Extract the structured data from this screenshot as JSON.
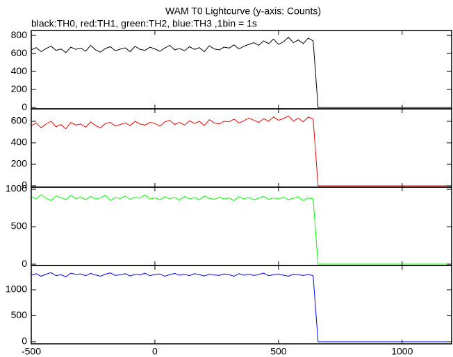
{
  "chart_data": {
    "type": "line",
    "title": "WAM T0 Lightcurve (y-axis: Counts)",
    "subtitle": "black:TH0, red:TH1, green:TH2, blue:TH3 ,1bin = 1s",
    "x": [
      -500,
      -480,
      -460,
      -440,
      -420,
      -400,
      -380,
      -360,
      -340,
      -320,
      -300,
      -280,
      -260,
      -240,
      -220,
      -200,
      -180,
      -160,
      -140,
      -120,
      -100,
      -80,
      -60,
      -40,
      -20,
      0,
      20,
      40,
      60,
      80,
      100,
      120,
      140,
      160,
      180,
      200,
      220,
      240,
      260,
      280,
      300,
      320,
      340,
      360,
      380,
      400,
      420,
      440,
      460,
      480,
      500,
      520,
      540,
      560,
      580,
      600,
      620,
      640,
      660,
      680,
      700,
      720,
      740,
      760,
      780,
      800,
      820,
      840,
      860,
      880,
      900,
      920,
      940,
      960,
      980,
      1000,
      1020,
      1040,
      1060,
      1080,
      1100,
      1120,
      1140,
      1160,
      1180,
      1200
    ],
    "xlim": [
      -500,
      1200
    ],
    "xticks": [
      -500,
      0,
      500,
      1000
    ],
    "panels": [
      {
        "ylim": [
          -15,
          855
        ],
        "yticks": [
          0,
          200,
          400,
          600,
          800
        ],
        "series": [
          {
            "color": "#000000",
            "values": [
              640,
              665,
              620,
              655,
              680,
              635,
              650,
              610,
              670,
              645,
              660,
              625,
              690,
              640,
              615,
              655,
              675,
              630,
              648,
              662,
              620,
              680,
              645,
              635,
              670,
              650,
              625,
              660,
              690,
              640,
              655,
              630,
              675,
              645,
              665,
              620,
              685,
              650,
              640,
              670,
              660,
              695,
              650,
              680,
              700,
              720,
              690,
              740,
              710,
              760,
              700,
              730,
              780,
              720,
              750,
              710,
              770,
              740,
              0,
              0,
              0,
              0,
              0,
              0,
              0,
              0,
              0,
              0,
              0,
              0,
              0,
              0,
              0,
              0,
              0,
              0,
              0,
              0,
              0,
              0,
              0,
              0,
              0,
              0,
              0,
              0
            ]
          }
        ]
      },
      {
        "ylim": [
          -13,
          716
        ],
        "yticks": [
          0,
          200,
          400,
          600
        ],
        "series": [
          {
            "color": "#ff0000",
            "values": [
              560,
              585,
              540,
              575,
              600,
              550,
              570,
              530,
              590,
              565,
              575,
              545,
              595,
              560,
              540,
              580,
              590,
              555,
              570,
              585,
              560,
              600,
              575,
              565,
              590,
              580,
              555,
              595,
              610,
              570,
              590,
              565,
              605,
              580,
              600,
              560,
              615,
              585,
              575,
              600,
              595,
              620,
              585,
              605,
              630,
              610,
              590,
              625,
              600,
              640,
              610,
              625,
              650,
              600,
              630,
              595,
              640,
              620,
              0,
              0,
              0,
              0,
              0,
              0,
              0,
              0,
              0,
              0,
              0,
              0,
              0,
              0,
              0,
              0,
              0,
              0,
              0,
              0,
              0,
              0,
              0,
              0,
              0,
              0,
              0,
              0
            ]
          }
        ]
      },
      {
        "ylim": [
          -18,
          1028
        ],
        "yticks": [
          0,
          500,
          1000
        ],
        "series": [
          {
            "color": "#00ff00",
            "values": [
              900,
              870,
              930,
              880,
              850,
              910,
              890,
              860,
              920,
              875,
              895,
              860,
              905,
              870,
              885,
              920,
              850,
              890,
              875,
              910,
              865,
              895,
              880,
              925,
              870,
              885,
              860,
              900,
              875,
              890,
              855,
              905,
              870,
              890,
              860,
              910,
              880,
              865,
              895,
              870,
              885,
              850,
              900,
              870,
              890,
              860,
              880,
              905,
              865,
              885,
              870,
              895,
              860,
              880,
              900,
              850,
              885,
              870,
              0,
              0,
              0,
              0,
              0,
              0,
              0,
              0,
              0,
              0,
              0,
              0,
              0,
              0,
              0,
              0,
              0,
              0,
              0,
              0,
              0,
              0,
              0,
              0,
              0,
              0,
              0,
              0
            ]
          }
        ]
      },
      {
        "ylim": [
          -40,
          1467
        ],
        "yticks": [
          0,
          500,
          1000
        ],
        "series": [
          {
            "color": "#0000ff",
            "values": [
              1280,
              1310,
              1260,
              1300,
              1330,
              1270,
              1290,
              1250,
              1320,
              1295,
              1305,
              1270,
              1315,
              1285,
              1260,
              1300,
              1325,
              1275,
              1290,
              1310,
              1265,
              1300,
              1285,
              1320,
              1270,
              1295,
              1305,
              1260,
              1290,
              1315,
              1280,
              1300,
              1270,
              1310,
              1290,
              1265,
              1300,
              1285,
              1275,
              1305,
              1290,
              1260,
              1310,
              1280,
              1300,
              1275,
              1295,
              1320,
              1270,
              1290,
              1305,
              1280,
              1260,
              1300,
              1290,
              1275,
              1295,
              1270,
              0,
              0,
              0,
              0,
              0,
              0,
              0,
              0,
              0,
              0,
              0,
              0,
              0,
              0,
              0,
              0,
              0,
              0,
              0,
              0,
              0,
              0,
              0,
              0,
              0,
              0,
              0,
              0
            ]
          }
        ]
      }
    ]
  }
}
